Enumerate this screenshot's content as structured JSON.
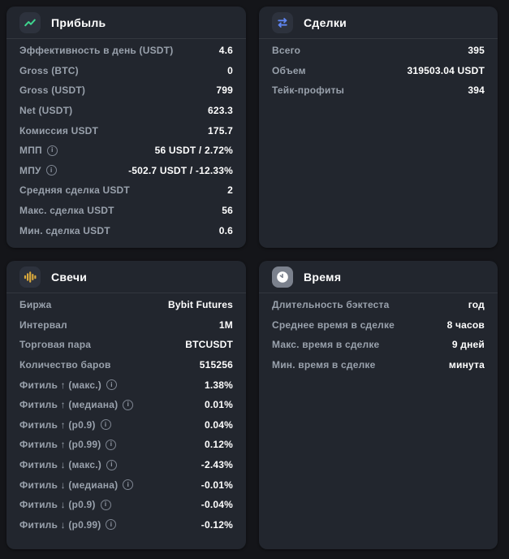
{
  "colors": {
    "page_bg": "#141519",
    "card_bg": "#22262e",
    "accent_green": "#3ed68f",
    "accent_blue": "#5f86f2",
    "accent_amber": "#d9a83c",
    "icon_gray": "#7b818d",
    "label_color": "#99a1ac",
    "value_color": "#ffffff"
  },
  "cards": [
    {
      "id": "profit",
      "title": "Прибыль",
      "icon": "trend-line-icon",
      "rows": [
        {
          "label": "Эффективность в день (USDT)",
          "value": "4.6"
        },
        {
          "label": "Gross (BTC)",
          "value": "0"
        },
        {
          "label": "Gross (USDT)",
          "value": "799"
        },
        {
          "label": "Net (USDT)",
          "value": "623.3"
        },
        {
          "label": "Комиссия USDT",
          "value": "175.7"
        },
        {
          "label": "МПП",
          "info": true,
          "value": "56 USDT / 2.72%"
        },
        {
          "label": "МПУ",
          "info": true,
          "value": "-502.7 USDT / -12.33%"
        },
        {
          "label": "Средняя сделка USDT",
          "value": "2"
        },
        {
          "label": "Макс. сделка USDT",
          "value": "56"
        },
        {
          "label": "Мин. сделка USDT",
          "value": "0.6"
        }
      ]
    },
    {
      "id": "trades",
      "title": "Сделки",
      "icon": "swap-arrows-icon",
      "rows": [
        {
          "label": "Всего",
          "value": "395"
        },
        {
          "label": "Объем",
          "value": "319503.04 USDT"
        },
        {
          "label": "Тейк-профиты",
          "value": "394"
        }
      ]
    },
    {
      "id": "candles",
      "title": "Свечи",
      "icon": "candles-icon",
      "rows": [
        {
          "label": "Биржа",
          "value": "Bybit Futures"
        },
        {
          "label": "Интервал",
          "value": "1M"
        },
        {
          "label": "Торговая пара",
          "value": "BTCUSDT"
        },
        {
          "label": "Количество баров",
          "value": "515256"
        },
        {
          "label": "Фитиль ↑ (макс.)",
          "info": true,
          "value": "1.38%"
        },
        {
          "label": "Фитиль ↑ (медиана)",
          "info": true,
          "value": "0.01%"
        },
        {
          "label": "Фитиль ↑ (p0.9)",
          "info": true,
          "value": "0.04%"
        },
        {
          "label": "Фитиль ↑ (p0.99)",
          "info": true,
          "value": "0.12%"
        },
        {
          "label": "Фитиль ↓ (макс.)",
          "info": true,
          "value": "-2.43%"
        },
        {
          "label": "Фитиль ↓ (медиана)",
          "info": true,
          "value": "-0.01%"
        },
        {
          "label": "Фитиль ↓ (p0.9)",
          "info": true,
          "value": "-0.04%"
        },
        {
          "label": "Фитиль ↓ (p0.99)",
          "info": true,
          "value": "-0.12%"
        }
      ]
    },
    {
      "id": "time",
      "title": "Время",
      "icon": "clock-icon",
      "rows": [
        {
          "label": "Длительность бэктеста",
          "value": "год"
        },
        {
          "label": "Среднее время в сделке",
          "value": "8 часов"
        },
        {
          "label": "Макс. время в сделке",
          "value": "9 дней"
        },
        {
          "label": "Мин. время в сделке",
          "value": "минута"
        }
      ]
    }
  ]
}
